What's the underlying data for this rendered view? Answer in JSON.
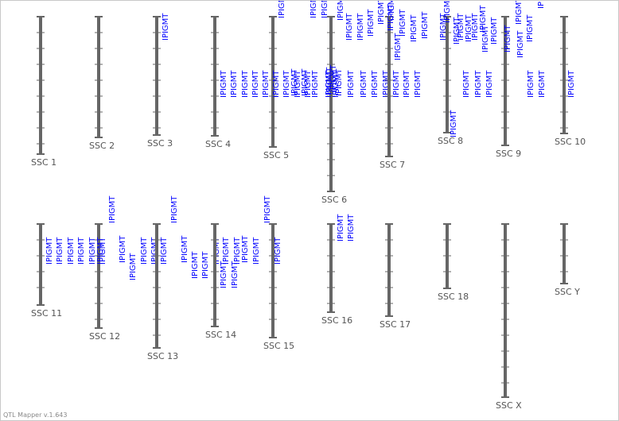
{
  "footer": {
    "version_text": "QTL Mapper v.1.643"
  },
  "colors": {
    "chromosome": "#666666",
    "qtl_label": "#0000ff",
    "chrom_label": "#555555"
  },
  "qtl_label": "IPIGMT",
  "chromosomes": [
    {
      "name": "SSC 1",
      "qtl_count": 0
    },
    {
      "name": "SSC 2",
      "qtl_count": 0
    },
    {
      "name": "SSC 3",
      "qtl_count": 1
    },
    {
      "name": "SSC 4",
      "qtl_count": 5
    },
    {
      "name": "SSC 5",
      "qtl_count": 8
    },
    {
      "name": "SSC 6",
      "qtl_count": 18
    },
    {
      "name": "SSC 7",
      "qtl_count": 7
    },
    {
      "name": "SSC 8",
      "qtl_count": 13
    },
    {
      "name": "SSC 9",
      "qtl_count": 7
    },
    {
      "name": "SSC 10",
      "qtl_count": 5
    },
    {
      "name": "SSC 11",
      "qtl_count": 6
    },
    {
      "name": "SSC 12",
      "qtl_count": 6
    },
    {
      "name": "SSC 13",
      "qtl_count": 6
    },
    {
      "name": "SSC 14",
      "qtl_count": 10
    },
    {
      "name": "SSC 15",
      "qtl_count": 2
    },
    {
      "name": "SSC 16",
      "qtl_count": 2
    },
    {
      "name": "SSC 17",
      "qtl_count": 0
    },
    {
      "name": "SSC 18",
      "qtl_count": 0
    },
    {
      "name": "SSC X",
      "qtl_count": 0
    },
    {
      "name": "SSC Y",
      "qtl_count": 0
    }
  ]
}
